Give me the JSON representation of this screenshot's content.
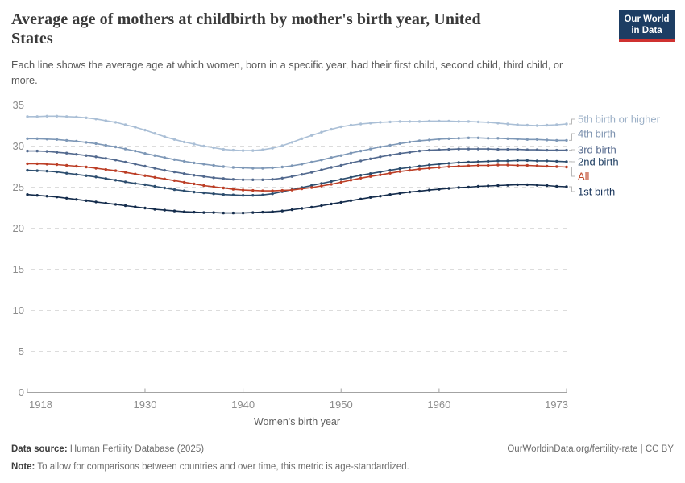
{
  "header": {
    "title": "Average age of mothers at childbirth by mother's birth year, United\nStates",
    "subtitle": "Each line shows the average age at which women, born in a specific year, had their first child, second child, third child, or\nmore.",
    "logo_line1": "Our World",
    "logo_line2": "in Data",
    "logo_bg_color": "#1d3d63",
    "logo_accent_color": "#cf3130"
  },
  "footer": {
    "source_bold": "Data source:",
    "source_text": " Human Fertility Database (2025)",
    "link_text": "OurWorldinData.org/fertility-rate | CC BY",
    "note_bold": "Note:",
    "note_text": " To allow for comparisons between countries and over time, this metric is age-standardized."
  },
  "chart_data": {
    "type": "line",
    "title": "Average age of mothers at childbirth by mother's birth year, United States",
    "xlabel": "Women's birth year",
    "ylabel": "",
    "grid": "dashed-horizontal",
    "legend_position": "right",
    "x_axis": {
      "range": [
        1918,
        1973
      ],
      "ticks": [
        1918,
        1930,
        1940,
        1950,
        1960,
        1973
      ]
    },
    "y_axis": {
      "range": [
        0,
        35
      ],
      "ticks": [
        0,
        5,
        10,
        15,
        20,
        25,
        30,
        35
      ]
    },
    "years": [
      1918,
      1919,
      1920,
      1921,
      1922,
      1923,
      1924,
      1925,
      1926,
      1927,
      1928,
      1929,
      1930,
      1931,
      1932,
      1933,
      1934,
      1935,
      1936,
      1937,
      1938,
      1939,
      1940,
      1941,
      1942,
      1943,
      1944,
      1945,
      1946,
      1947,
      1948,
      1949,
      1950,
      1951,
      1952,
      1953,
      1954,
      1955,
      1956,
      1957,
      1958,
      1959,
      1960,
      1961,
      1962,
      1963,
      1964,
      1965,
      1966,
      1967,
      1968,
      1969,
      1970,
      1971,
      1972,
      1973
    ],
    "series": [
      {
        "name": "5th birth or higher",
        "color": "#aabfd6",
        "label_color": "#9cb0c7",
        "values": [
          33.6,
          33.6,
          33.65,
          33.65,
          33.6,
          33.55,
          33.45,
          33.3,
          33.1,
          32.9,
          32.6,
          32.3,
          31.95,
          31.55,
          31.15,
          30.8,
          30.5,
          30.25,
          30.0,
          29.8,
          29.6,
          29.5,
          29.45,
          29.45,
          29.55,
          29.75,
          30.05,
          30.45,
          30.9,
          31.3,
          31.7,
          32.05,
          32.35,
          32.55,
          32.7,
          32.8,
          32.9,
          32.95,
          33.0,
          33.0,
          33.0,
          33.05,
          33.05,
          33.05,
          33.0,
          33.0,
          32.95,
          32.9,
          32.8,
          32.7,
          32.6,
          32.55,
          32.5,
          32.55,
          32.6,
          32.7
        ]
      },
      {
        "name": "4th birth",
        "color": "#7e98b7",
        "label_color": "#7e93b0",
        "values": [
          30.9,
          30.9,
          30.85,
          30.8,
          30.7,
          30.6,
          30.45,
          30.3,
          30.1,
          29.9,
          29.65,
          29.4,
          29.1,
          28.85,
          28.6,
          28.35,
          28.15,
          27.95,
          27.8,
          27.65,
          27.5,
          27.4,
          27.35,
          27.3,
          27.3,
          27.35,
          27.45,
          27.6,
          27.8,
          28.05,
          28.3,
          28.6,
          28.85,
          29.15,
          29.4,
          29.65,
          29.9,
          30.1,
          30.3,
          30.5,
          30.65,
          30.75,
          30.85,
          30.9,
          30.95,
          31.0,
          31.0,
          30.95,
          30.95,
          30.9,
          30.85,
          30.8,
          30.8,
          30.75,
          30.7,
          30.7
        ]
      },
      {
        "name": "3rd birth",
        "color": "#52698e",
        "label_color": "#576b8f",
        "values": [
          29.4,
          29.4,
          29.35,
          29.25,
          29.15,
          29.0,
          28.85,
          28.7,
          28.5,
          28.3,
          28.05,
          27.8,
          27.55,
          27.3,
          27.05,
          26.85,
          26.65,
          26.45,
          26.3,
          26.15,
          26.05,
          25.95,
          25.9,
          25.9,
          25.9,
          25.95,
          26.1,
          26.3,
          26.55,
          26.8,
          27.1,
          27.4,
          27.65,
          27.95,
          28.2,
          28.45,
          28.7,
          28.9,
          29.1,
          29.25,
          29.4,
          29.5,
          29.55,
          29.6,
          29.65,
          29.65,
          29.65,
          29.65,
          29.6,
          29.6,
          29.6,
          29.55,
          29.55,
          29.5,
          29.5,
          29.5
        ]
      },
      {
        "name": "2nd birth",
        "color": "#2c4d6e",
        "label_color": "#1f3f63",
        "values": [
          27.05,
          27.0,
          26.95,
          26.85,
          26.7,
          26.55,
          26.4,
          26.25,
          26.05,
          25.85,
          25.65,
          25.45,
          25.3,
          25.1,
          24.9,
          24.7,
          24.55,
          24.4,
          24.3,
          24.2,
          24.1,
          24.05,
          24.0,
          24.0,
          24.05,
          24.2,
          24.45,
          24.7,
          24.95,
          25.2,
          25.45,
          25.7,
          25.95,
          26.2,
          26.45,
          26.65,
          26.85,
          27.05,
          27.25,
          27.4,
          27.55,
          27.7,
          27.8,
          27.9,
          28.0,
          28.05,
          28.1,
          28.15,
          28.2,
          28.2,
          28.25,
          28.25,
          28.2,
          28.2,
          28.15,
          28.1
        ]
      },
      {
        "name": "All",
        "color": "#bc3e26",
        "label_color": "#c04a2c",
        "values": [
          27.85,
          27.85,
          27.8,
          27.75,
          27.65,
          27.55,
          27.45,
          27.3,
          27.15,
          27.0,
          26.8,
          26.6,
          26.4,
          26.2,
          26.0,
          25.8,
          25.6,
          25.4,
          25.2,
          25.05,
          24.9,
          24.75,
          24.65,
          24.6,
          24.55,
          24.55,
          24.6,
          24.65,
          24.8,
          24.95,
          25.15,
          25.35,
          25.6,
          25.85,
          26.1,
          26.3,
          26.5,
          26.7,
          26.9,
          27.05,
          27.2,
          27.3,
          27.4,
          27.5,
          27.55,
          27.6,
          27.65,
          27.65,
          27.7,
          27.7,
          27.65,
          27.65,
          27.6,
          27.55,
          27.5,
          27.45
        ]
      },
      {
        "name": "1st birth",
        "color": "#142c4c",
        "label_color": "#17335a",
        "values": [
          24.1,
          24.0,
          23.9,
          23.8,
          23.65,
          23.5,
          23.35,
          23.2,
          23.05,
          22.9,
          22.75,
          22.6,
          22.45,
          22.3,
          22.2,
          22.1,
          22.0,
          21.95,
          21.9,
          21.9,
          21.85,
          21.85,
          21.85,
          21.9,
          21.95,
          22.0,
          22.1,
          22.25,
          22.4,
          22.55,
          22.75,
          22.95,
          23.15,
          23.35,
          23.55,
          23.75,
          23.9,
          24.1,
          24.25,
          24.4,
          24.5,
          24.65,
          24.75,
          24.85,
          24.95,
          25.0,
          25.1,
          25.15,
          25.2,
          25.25,
          25.3,
          25.3,
          25.25,
          25.2,
          25.1,
          25.05
        ]
      }
    ],
    "style": {
      "gridline_color": "#dcdcdc",
      "axis_color": "#a3a3a3",
      "tick_label_color": "#8c8c8c",
      "axis_title_color": "#5f5f5f",
      "connector_color": "#b8b8b8"
    }
  }
}
